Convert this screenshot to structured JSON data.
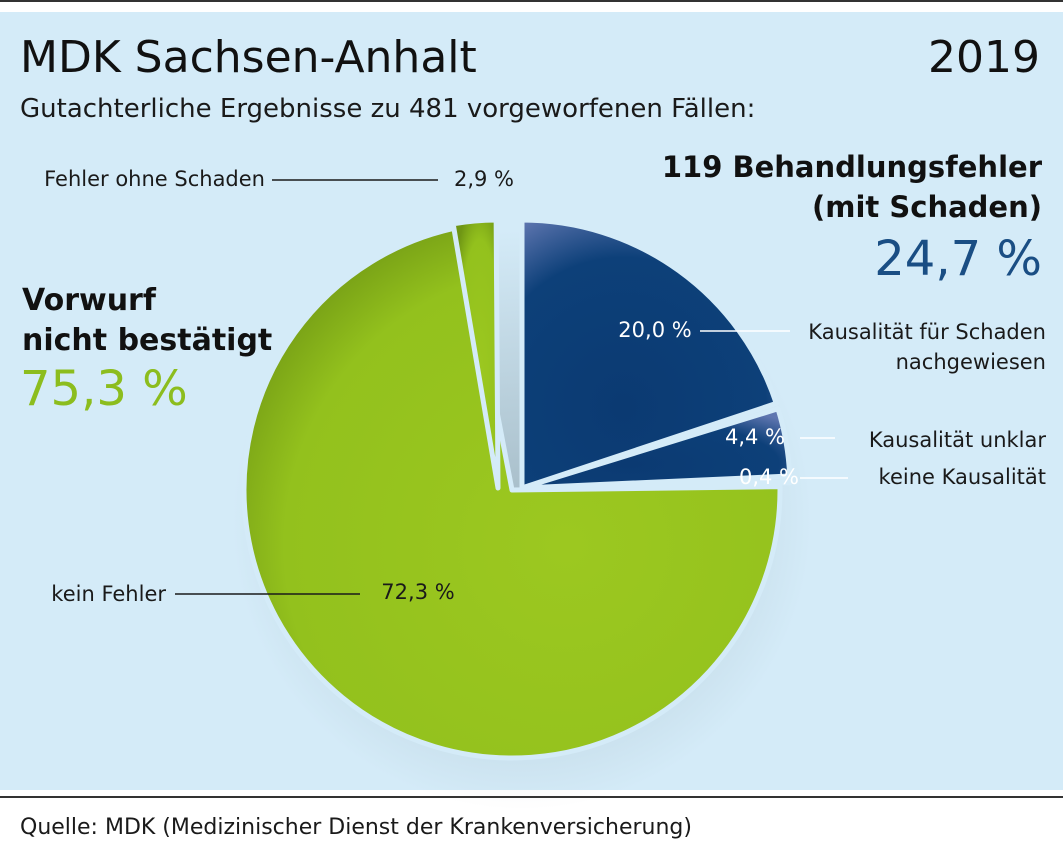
{
  "header": {
    "title": "MDK Sachsen-Anhalt",
    "year": "2019",
    "subtitle": "Gutachterliche Ergebnisse zu 481 vorgeworfenen Fällen:"
  },
  "groups": {
    "not_confirmed": {
      "line1": "Vorwurf",
      "line2": "nicht bestätigt",
      "value_label": "75,3 %",
      "color": "#8cbd1e"
    },
    "errors_with_damage": {
      "line1": "119 Behandlungsfehler",
      "line2": "(mit Schaden)",
      "value_label": "24,7 %",
      "color": "#1a4e84"
    }
  },
  "footer": {
    "source": "Quelle: MDK (Medizinischer Dienst der Krankenversicherung)"
  },
  "colors": {
    "background_panel": "#d4ebf8",
    "green_slice": "#96c31f",
    "blue_slice": "#0d3f78",
    "green_text": "#8cbd1e",
    "blue_text": "#1a4e84"
  },
  "chart_data": {
    "type": "pie",
    "title": "MDK Sachsen-Anhalt",
    "subtitle": "Gutachterliche Ergebnisse zu 481 vorgeworfenen Fällen:",
    "slices": [
      {
        "label": "Kausalität für Schaden nachgewiesen",
        "value": 20.0,
        "value_label": "20,0 %",
        "group": "errors_with_damage"
      },
      {
        "label": "Kausalität unklar",
        "value": 4.4,
        "value_label": "4,4 %",
        "group": "errors_with_damage"
      },
      {
        "label": "keine Kausalität",
        "value": 0.4,
        "value_label": "0,4 %",
        "group": "errors_with_damage"
      },
      {
        "label": "kein Fehler",
        "value": 72.3,
        "value_label": "72,3 %",
        "group": "not_confirmed"
      },
      {
        "label": "Fehler ohne Schaden",
        "value": 2.9,
        "value_label": "2,9 %",
        "group": "not_confirmed"
      }
    ]
  }
}
